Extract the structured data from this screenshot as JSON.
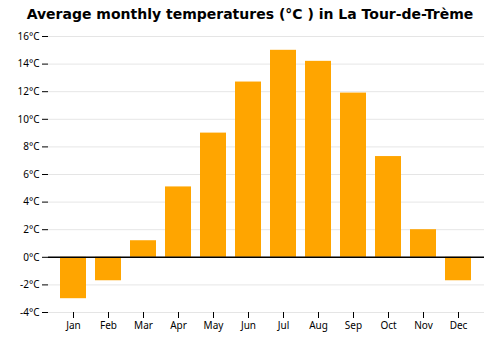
{
  "chart_data": {
    "type": "bar",
    "title": "Average monthly temperatures (°C ) in La Tour-de-Trème",
    "categories": [
      "Jan",
      "Feb",
      "Mar",
      "Apr",
      "May",
      "Jun",
      "Jul",
      "Aug",
      "Sep",
      "Oct",
      "Nov",
      "Dec"
    ],
    "values": [
      -3.0,
      -1.7,
      1.2,
      5.1,
      9.0,
      12.7,
      15.0,
      14.2,
      11.9,
      7.3,
      2.0,
      -1.7
    ],
    "color": "#FFA500",
    "ylim": [
      -4,
      16
    ],
    "yticks": [
      {
        "value": -4,
        "label": "-4°C"
      },
      {
        "value": -2,
        "label": "-2°C"
      },
      {
        "value": 0,
        "label": "0°C"
      },
      {
        "value": 2,
        "label": "2°C"
      },
      {
        "value": 4,
        "label": "4°C"
      },
      {
        "value": 6,
        "label": "6°C"
      },
      {
        "value": 8,
        "label": "8°C"
      },
      {
        "value": 10,
        "label": "10°C"
      },
      {
        "value": 12,
        "label": "12°C"
      },
      {
        "value": 14,
        "label": "14°C"
      },
      {
        "value": 16,
        "label": "16°C"
      }
    ],
    "grid": true
  }
}
